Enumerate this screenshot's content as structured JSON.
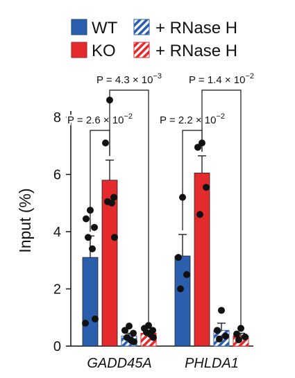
{
  "legend": [
    {
      "id": "wt",
      "label": "WT",
      "color": "#2b5fad",
      "hatched": false
    },
    {
      "id": "ko",
      "label": "KO",
      "color": "#e32a2c",
      "hatched": false
    },
    {
      "id": "wt_rnaseh",
      "label": "+ RNase H",
      "color": "#2b5fad",
      "hatched": true
    },
    {
      "id": "ko_rnaseh",
      "label": "+ RNase H",
      "color": "#e32a2c",
      "hatched": true
    }
  ],
  "chart_data": {
    "type": "bar",
    "ylabel": "Input (%)",
    "xlabel": "",
    "ylim": [
      0,
      9.2
    ],
    "yticks": [
      0,
      2,
      4,
      6,
      8
    ],
    "grid": false,
    "legend_position": "top",
    "categories": [
      "GADD45A",
      "PHLDA1"
    ],
    "series": [
      {
        "name": "WT",
        "color": "#2b5fad",
        "hatched": false,
        "values": [
          3.1,
          3.15
        ],
        "errors": [
          0.75,
          0.75
        ],
        "points": [
          [
            4.75,
            4.45,
            4.15,
            3.8,
            3.4,
            0.95,
            0.8
          ],
          [
            5.2,
            3.1,
            2.5,
            2.0
          ]
        ]
      },
      {
        "name": "KO",
        "color": "#e32a2c",
        "hatched": false,
        "values": [
          5.8,
          6.05
        ],
        "errors": [
          0.7,
          0.6
        ],
        "points": [
          [
            8.6,
            7.1,
            5.2,
            5.05,
            5.0,
            3.8
          ],
          [
            7.1,
            6.95,
            5.55,
            4.6
          ]
        ]
      },
      {
        "name": "+ RNase H",
        "color": "#2b5fad",
        "hatched": true,
        "values": [
          0.35,
          0.55
        ],
        "errors": [
          0.1,
          0.25
        ],
        "points": [
          [
            0.7,
            0.55,
            0.45,
            0.3,
            0.2,
            0.15
          ],
          [
            1.25,
            0.55,
            0.35,
            0.25
          ]
        ]
      },
      {
        "name": "+ RNase H",
        "color": "#e32a2c",
        "hatched": true,
        "values": [
          0.45,
          0.35
        ],
        "errors": [
          0.1,
          0.1
        ],
        "points": [
          [
            0.72,
            0.62,
            0.55,
            0.48,
            0.4,
            0.3
          ],
          [
            0.62,
            0.42,
            0.32,
            0.22
          ]
        ]
      }
    ],
    "comparisons": [
      {
        "group": 0,
        "from_series": 0,
        "to_series": 1,
        "label": "P = 2.6 × 10",
        "exp": "−2"
      },
      {
        "group": 0,
        "from_series": 1,
        "to_series": 3,
        "label": "P = 4.3 × 10",
        "exp": "−3"
      },
      {
        "group": 1,
        "from_series": 0,
        "to_series": 1,
        "label": "P = 2.2 × 10",
        "exp": "−2"
      },
      {
        "group": 1,
        "from_series": 1,
        "to_series": 3,
        "label": "P = 1.4 × 10",
        "exp": "−2"
      }
    ]
  }
}
